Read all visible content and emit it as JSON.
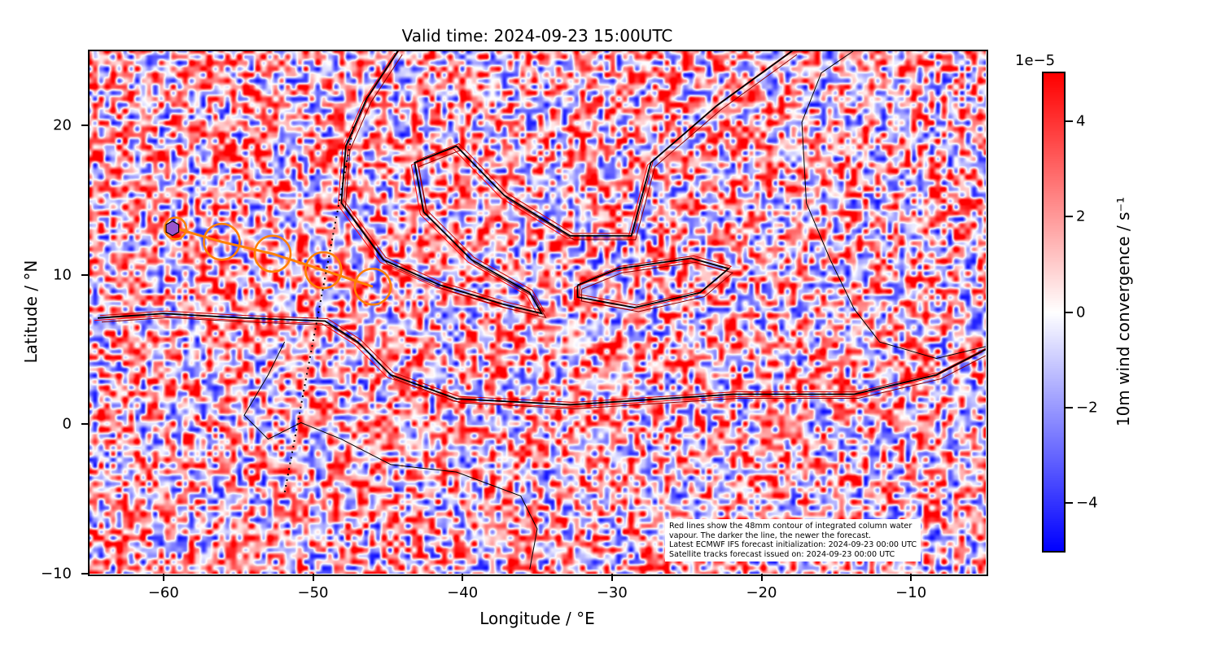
{
  "title": "Valid time: 2024-09-23 15:00UTC",
  "xlabel": "Longitude / °E",
  "ylabel": "Latitude / °N",
  "note": [
    "Red lines show the 48mm contour of integrated column water",
    "vapour. The darker the line, the newer the forecast.",
    "Latest ECMWF IFS forecast initialization: 2024-09-23 00:00 UTC",
    "Satellite tracks forecast issued on: 2024-09-23 00:00 UTC"
  ],
  "colorbar": {
    "label": "10m wind convergence / s⁻¹",
    "exponent": "1e−5",
    "range": [
      -5,
      5
    ],
    "ticks": [
      {
        "v": 4,
        "label": "4"
      },
      {
        "v": 2,
        "label": "2"
      },
      {
        "v": 0,
        "label": "0"
      },
      {
        "v": -2,
        "label": "−2"
      },
      {
        "v": -4,
        "label": "−4"
      }
    ],
    "colormap": [
      "#0000ff",
      "#ffffff",
      "#ff0000"
    ]
  },
  "chart_data": {
    "type": "map",
    "xlim": [
      -65,
      -5
    ],
    "ylim": [
      -10,
      25
    ],
    "xticks": [
      {
        "v": -60,
        "label": "−60"
      },
      {
        "v": -50,
        "label": "−50"
      },
      {
        "v": -40,
        "label": "−40"
      },
      {
        "v": -30,
        "label": "−30"
      },
      {
        "v": -20,
        "label": "−20"
      },
      {
        "v": -10,
        "label": "−10"
      }
    ],
    "yticks": [
      {
        "v": 20,
        "label": "20"
      },
      {
        "v": 10,
        "label": "10"
      },
      {
        "v": 0,
        "label": "0"
      },
      {
        "v": -10,
        "label": "−10"
      }
    ],
    "field": "10m wind convergence",
    "contour_color_latest": "#000000",
    "contour_color_older": "#dd0000",
    "iwv_contours": [
      [
        [
          -64.4,
          7.1
        ],
        [
          -60.0,
          7.4
        ],
        [
          -54.6,
          7.1
        ],
        [
          -49.2,
          6.9
        ],
        [
          -47.0,
          5.5
        ],
        [
          -44.8,
          3.3
        ],
        [
          -40.4,
          1.7
        ],
        [
          -32.8,
          1.3
        ],
        [
          -21.9,
          2.0
        ],
        [
          -13.8,
          2.0
        ],
        [
          -8.3,
          3.3
        ],
        [
          -5.0,
          5.0
        ]
      ],
      [
        [
          -17.9,
          25.0
        ],
        [
          -23.0,
          21.3
        ],
        [
          -27.4,
          17.5
        ],
        [
          -28.7,
          12.6
        ],
        [
          -32.8,
          12.6
        ],
        [
          -37.2,
          15.3
        ],
        [
          -40.4,
          18.6
        ],
        [
          -43.2,
          17.5
        ],
        [
          -42.6,
          14.2
        ],
        [
          -39.4,
          11.0
        ],
        [
          -35.5,
          8.8
        ],
        [
          -34.7,
          7.4
        ],
        [
          -37.2,
          8.0
        ],
        [
          -41.5,
          9.3
        ],
        [
          -45.3,
          11.0
        ],
        [
          -48.1,
          14.8
        ],
        [
          -47.8,
          18.6
        ],
        [
          -46.4,
          21.8
        ],
        [
          -44.3,
          25.0
        ]
      ],
      [
        [
          -32.3,
          9.3
        ],
        [
          -29.6,
          10.4
        ],
        [
          -24.7,
          11.1
        ],
        [
          -22.2,
          10.4
        ],
        [
          -24.1,
          8.8
        ],
        [
          -28.5,
          7.8
        ],
        [
          -32.3,
          8.5
        ],
        [
          -32.3,
          9.3
        ]
      ]
    ],
    "coastlines": [
      [
        [
          -51.9,
          5.5
        ],
        [
          -53.0,
          3.3
        ],
        [
          -54.6,
          0.6
        ],
        [
          -53.0,
          -1.0
        ],
        [
          -50.8,
          0.1
        ],
        [
          -48.1,
          -1.0
        ],
        [
          -44.8,
          -2.7
        ],
        [
          -40.4,
          -3.2
        ],
        [
          -36.1,
          -4.8
        ],
        [
          -35.0,
          -7.0
        ],
        [
          -35.5,
          -9.7
        ]
      ],
      [
        [
          -5.0,
          5.2
        ],
        [
          -8.3,
          4.4
        ],
        [
          -12.1,
          5.5
        ],
        [
          -13.8,
          7.7
        ],
        [
          -15.4,
          11.0
        ],
        [
          -17.0,
          14.8
        ],
        [
          -17.3,
          20.2
        ],
        [
          -16.0,
          23.5
        ],
        [
          -13.8,
          25.0
        ]
      ]
    ],
    "satellite_track": {
      "color": "#ff8000",
      "points": [
        [
          -59.2,
          13.1
        ],
        [
          -56.1,
          12.2
        ],
        [
          -52.7,
          11.4
        ],
        [
          -49.3,
          10.3
        ],
        [
          -46.0,
          9.2
        ]
      ],
      "footprint_radius_deg": 1.2
    },
    "marker": {
      "shape": "hexagon",
      "color": "#9955cc",
      "lon": -59.4,
      "lat": 13.1
    },
    "dotted_line": [
      [
        -47.3,
        19.9
      ],
      [
        -51.9,
        -4.6
      ]
    ]
  }
}
